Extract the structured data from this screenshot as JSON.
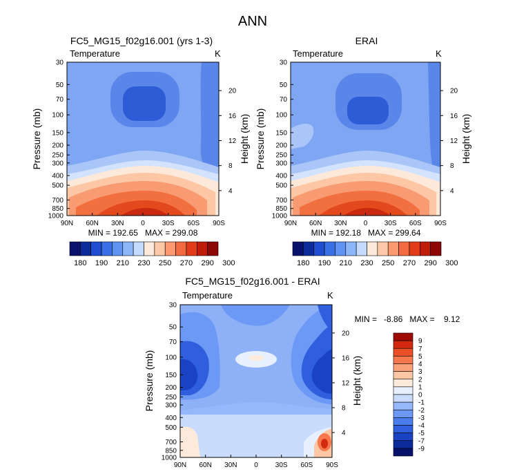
{
  "figure_title": "ANN",
  "colors": {
    "abs_scale": [
      "#08116b",
      "#0d2c9c",
      "#1f4fd0",
      "#3a6fe6",
      "#5f93f2",
      "#8db5fa",
      "#c4dbfd",
      "#fde9d9",
      "#fdc8a8",
      "#fb9a70",
      "#f26a3f",
      "#e23d1a",
      "#c01c0c",
      "#8e0707"
    ],
    "diff_scale": [
      "#08116b",
      "#0d2c9c",
      "#1a43c4",
      "#2f5fdd",
      "#4a7cec",
      "#6c99f5",
      "#96b8fb",
      "#c9dcfd",
      "#e6f0ff",
      "#fdeadb",
      "#fdc6a4",
      "#fba27a",
      "#f6784c",
      "#ea4f27",
      "#d12a10",
      "#9e0b05"
    ]
  },
  "chart_data": [
    {
      "type": "heatmap",
      "title": "FC5_MG15_f02g16.001 (yrs 1-3)",
      "variable": "Temperature",
      "units": "K",
      "ylabel": "Pressure (mb)",
      "ylabel_right": "Height (km)",
      "x_ticks": [
        "90N",
        "60N",
        "30N",
        "0",
        "30S",
        "60S",
        "90S"
      ],
      "y_ticks": [
        30,
        50,
        70,
        100,
        150,
        200,
        250,
        300,
        400,
        500,
        700,
        850,
        1000
      ],
      "y_right_ticks": [
        4,
        8,
        12,
        16,
        20
      ],
      "stats_text": "MIN = 192.65   MAX = 299.08",
      "min": 192.65,
      "max": 299.08,
      "scale": "log-pressure"
    },
    {
      "type": "heatmap",
      "title": "ERAI",
      "variable": "Temperature",
      "units": "K",
      "ylabel": "Pressure (mb)",
      "ylabel_right": "Height (km)",
      "x_ticks": [
        "90N",
        "60N",
        "30N",
        "0",
        "30S",
        "60S",
        "90S"
      ],
      "y_ticks": [
        30,
        50,
        70,
        100,
        150,
        200,
        250,
        300,
        400,
        500,
        700,
        850,
        1000
      ],
      "y_right_ticks": [
        4,
        8,
        12,
        16,
        20
      ],
      "stats_text": "MIN = 192.18   MAX = 299.64",
      "min": 192.18,
      "max": 299.64,
      "scale": "log-pressure"
    },
    {
      "type": "heatmap",
      "title": "FC5_MG15_f02g16.001 - ERAI",
      "variable": "Temperature",
      "units": "K",
      "ylabel": "Pressure (mb)",
      "ylabel_right": "Height (km)",
      "x_ticks": [
        "90N",
        "60N",
        "30N",
        "0",
        "30S",
        "60S",
        "90S"
      ],
      "y_ticks": [
        30,
        50,
        70,
        100,
        150,
        200,
        250,
        300,
        400,
        500,
        700,
        850,
        1000
      ],
      "y_right_ticks": [
        4,
        8,
        12,
        16,
        20
      ],
      "stats_text": "MIN =   -8.86   MAX =    9.12",
      "min": -8.86,
      "max": 9.12,
      "scale": "log-pressure"
    }
  ],
  "colorbar_abs": {
    "labels": [
      "180",
      "190",
      "210",
      "230",
      "250",
      "270",
      "290",
      "300"
    ]
  },
  "colorbar_diff": {
    "labels": [
      "9",
      "7",
      "5",
      "4",
      "3",
      "2",
      "1",
      "0",
      "-1",
      "-2",
      "-3",
      "-4",
      "-5",
      "-7",
      "-9"
    ]
  }
}
